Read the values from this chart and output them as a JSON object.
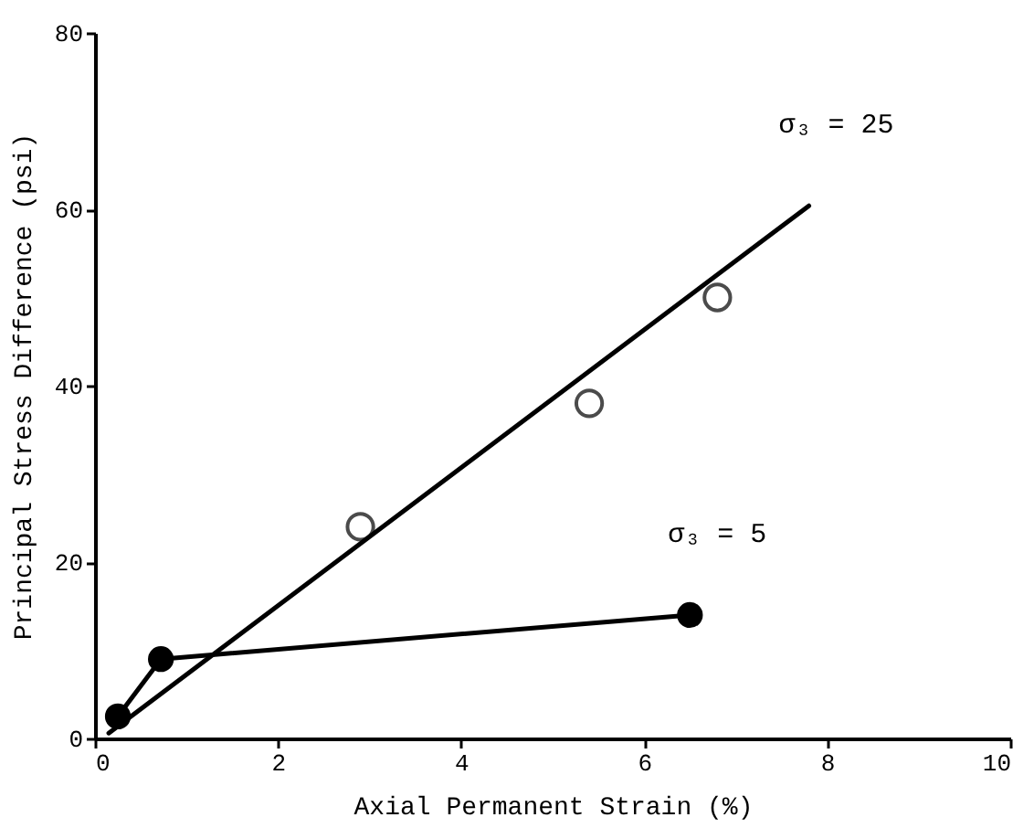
{
  "chart_data": {
    "type": "scatter",
    "xlabel": "Axial Permanent Strain (%)",
    "ylabel": "Principal Stress Difference (psi)",
    "xlim": [
      0,
      10
    ],
    "ylim": [
      0,
      80
    ],
    "xticks": [
      0,
      2,
      4,
      6,
      8,
      10
    ],
    "yticks": [
      0,
      20,
      40,
      60,
      80
    ],
    "grid": false,
    "series": [
      {
        "marker": "circle",
        "color": "#000000",
        "x": [
          2.9,
          5.4,
          6.8
        ],
        "values": [
          24,
          38,
          50
        ]
      },
      {
        "type": "line",
        "name": "σ₃ = 25",
        "marker": "none",
        "color": "#000000",
        "x": [
          0.15,
          7.8
        ],
        "values": [
          0.6,
          60.4
        ]
      },
      {
        "type": "line",
        "name": "σ₃ = 5",
        "marker": "circle",
        "color": "#000000",
        "x": [
          0.25,
          0.72,
          6.5
        ],
        "values": [
          2.5,
          9,
          14
        ]
      }
    ]
  }
}
